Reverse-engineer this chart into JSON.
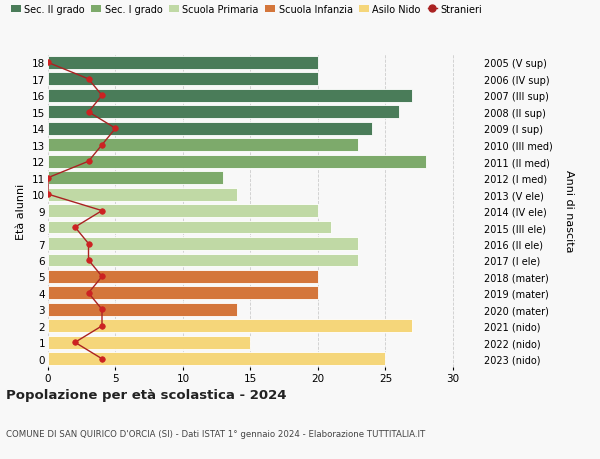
{
  "ages": [
    18,
    17,
    16,
    15,
    14,
    13,
    12,
    11,
    10,
    9,
    8,
    7,
    6,
    5,
    4,
    3,
    2,
    1,
    0
  ],
  "right_labels": [
    "2005 (V sup)",
    "2006 (IV sup)",
    "2007 (III sup)",
    "2008 (II sup)",
    "2009 (I sup)",
    "2010 (III med)",
    "2011 (II med)",
    "2012 (I med)",
    "2013 (V ele)",
    "2014 (IV ele)",
    "2015 (III ele)",
    "2016 (II ele)",
    "2017 (I ele)",
    "2018 (mater)",
    "2019 (mater)",
    "2020 (mater)",
    "2021 (nido)",
    "2022 (nido)",
    "2023 (nido)"
  ],
  "bar_values": [
    20,
    20,
    27,
    26,
    24,
    23,
    28,
    13,
    14,
    20,
    21,
    23,
    23,
    20,
    20,
    14,
    27,
    15,
    25
  ],
  "bar_colors": [
    "#4a7c59",
    "#4a7c59",
    "#4a7c59",
    "#4a7c59",
    "#4a7c59",
    "#7daa6b",
    "#7daa6b",
    "#7daa6b",
    "#c0d9a5",
    "#c0d9a5",
    "#c0d9a5",
    "#c0d9a5",
    "#c0d9a5",
    "#d4763b",
    "#d4763b",
    "#d4763b",
    "#f5d67a",
    "#f5d67a",
    "#f5d67a"
  ],
  "stranieri_values": [
    0,
    3,
    4,
    3,
    5,
    4,
    3,
    0,
    0,
    4,
    2,
    3,
    3,
    4,
    3,
    4,
    4,
    2,
    4
  ],
  "legend_labels": [
    "Sec. II grado",
    "Sec. I grado",
    "Scuola Primaria",
    "Scuola Infanzia",
    "Asilo Nido",
    "Stranieri"
  ],
  "legend_colors": [
    "#4a7c59",
    "#7daa6b",
    "#c0d9a5",
    "#d4763b",
    "#f5d67a",
    "#aa2222"
  ],
  "title": "Popolazione per età scolastica - 2024",
  "subtitle": "COMUNE DI SAN QUIRICO D'ORCIA (SI) - Dati ISTAT 1° gennaio 2024 - Elaborazione TUTTITALIA.IT",
  "ylabel_left": "Età alunni",
  "ylabel_right": "Anni di nascita",
  "xlim": [
    0,
    32
  ],
  "bg_color": "#f8f8f8"
}
